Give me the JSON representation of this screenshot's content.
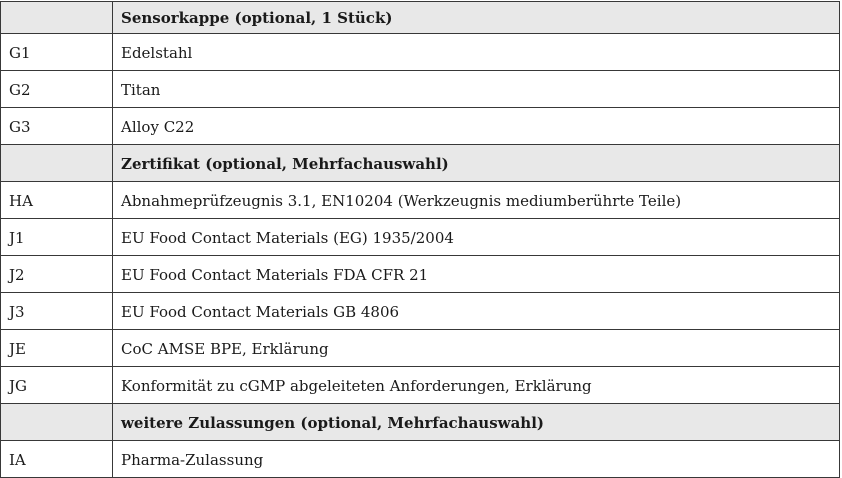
{
  "table": {
    "colors": {
      "section_header_bg": "#e8e8e8",
      "border": "#383838",
      "text": "#1a1a1a",
      "row_bg": "#ffffff"
    },
    "sections": [
      {
        "header": "Sensorkappe (optional, 1 Stück)",
        "rows": [
          {
            "code": "G1",
            "label": "Edelstahl"
          },
          {
            "code": "G2",
            "label": "Titan"
          },
          {
            "code": "G3",
            "label": "Alloy C22"
          }
        ]
      },
      {
        "header": "Zertifikat (optional, Mehrfachauswahl)",
        "rows": [
          {
            "code": "HA",
            "label": "Abnahmeprüfzeugnis 3.1, EN10204 (Werkzeugnis mediumberührte Teile)"
          },
          {
            "code": "J1",
            "label": "EU Food Contact Materials (EG) 1935/2004"
          },
          {
            "code": "J2",
            "label": "EU Food Contact Materials FDA CFR 21"
          },
          {
            "code": "J3",
            "label": "EU Food Contact Materials GB 4806"
          },
          {
            "code": "JE",
            "label": "CoC AMSE BPE, Erklärung"
          },
          {
            "code": "JG",
            "label": "Konformität zu cGMP abgeleiteten Anforderungen, Erklärung"
          }
        ]
      },
      {
        "header": "weitere Zulassungen (optional, Mehrfachauswahl)",
        "rows": [
          {
            "code": "IA",
            "label": "Pharma-Zulassung"
          }
        ]
      }
    ]
  }
}
